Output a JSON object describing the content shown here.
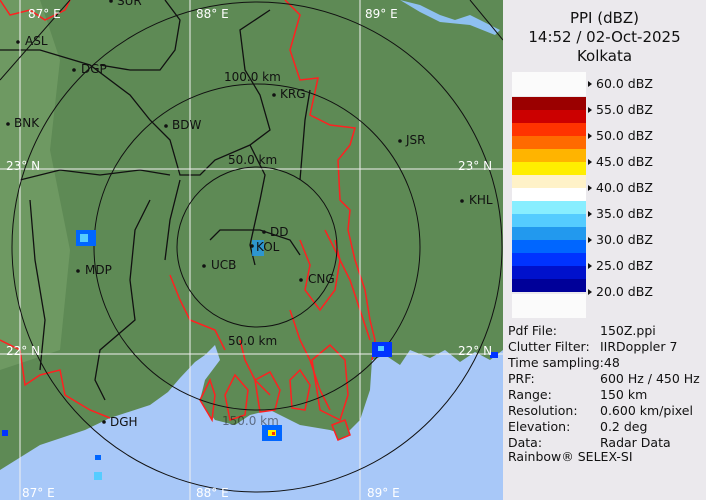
{
  "map": {
    "grid_labels": {
      "lon": [
        "87° E",
        "88° E",
        "89° E"
      ],
      "lat": [
        "23° N",
        "22° N"
      ]
    },
    "ring_labels": [
      "50.0 km",
      "100.0 km",
      "150.0 km"
    ],
    "cities": [
      "SUR",
      "ASL",
      "DGP",
      "BNK",
      "BDW",
      "KRG",
      "JSR",
      "KHL",
      "DD",
      "KOL",
      "UCB",
      "CNG",
      "MDP",
      "DGH"
    ],
    "colors": {
      "land": "#5e8a55",
      "sea": "#a8c8f8",
      "boundary": "#111111",
      "rivers": "#ff2020"
    }
  },
  "panel": {
    "title": "PPI (dBZ)",
    "datetime": "14:52 / 02-Oct-2025",
    "station": "Kolkata",
    "legend": {
      "labels": [
        "60.0 dBZ",
        "55.0 dBZ",
        "50.0 dBZ",
        "45.0 dBZ",
        "40.0 dBZ",
        "35.0 dBZ",
        "30.0 dBZ",
        "25.0 dBZ",
        "20.0 dBZ"
      ],
      "colors": [
        "#9b0000",
        "#cc0000",
        "#ff3300",
        "#ff6a00",
        "#ffb400",
        "#ffee00",
        "#fff2c8",
        "#ffffff",
        "#88eeff",
        "#55ccff",
        "#2299ee",
        "#0066ff",
        "#0033ff",
        "#0011cc",
        "#000099"
      ]
    },
    "info": [
      {
        "key": "Pdf File:",
        "value": "150Z.ppi"
      },
      {
        "key": "Clutter Filter:",
        "value": "IIRDoppler 7"
      },
      {
        "key": "Time sampling:",
        "value": "48"
      },
      {
        "key": "PRF:",
        "value": "600 Hz / 450 Hz"
      },
      {
        "key": "Range:",
        "value": "150 km"
      },
      {
        "key": "Resolution:",
        "value": "0.600 km/pixel"
      },
      {
        "key": "Elevation:",
        "value": "0.2 deg"
      },
      {
        "key": "Data:",
        "value": "Radar Data"
      }
    ],
    "footer": "Rainbow® SELEX-SI"
  }
}
